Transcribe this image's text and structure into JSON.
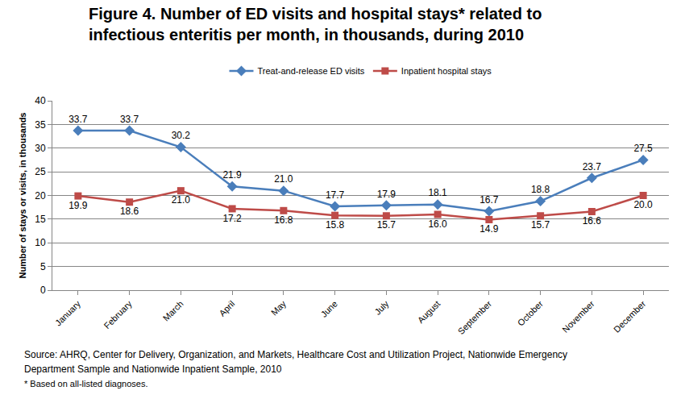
{
  "chart_data": {
    "type": "line",
    "title": "Figure 4. Number of ED visits and hospital stays* related to infectious enteritis per month, in thousands, during 2010",
    "y_label": "Number of stays or visits, in thousands",
    "categories": [
      "January",
      "February",
      "March",
      "April",
      "May",
      "June",
      "July",
      "August",
      "September",
      "October",
      "November",
      "December"
    ],
    "series": [
      {
        "name": "Treat-and-release ED visits",
        "color": "#4a7ebb",
        "marker": "diamond",
        "values": [
          33.7,
          33.7,
          30.2,
          21.9,
          21.0,
          17.7,
          17.9,
          18.1,
          16.7,
          18.8,
          23.7,
          27.5
        ],
        "value_labels": [
          "33.7",
          "33.7",
          "30.2",
          "21.9",
          "21.0",
          "17.7",
          "17.9",
          "18.1",
          "16.7",
          "18.8",
          "23.7",
          "27.5"
        ]
      },
      {
        "name": "Inpatient hospital stays",
        "color": "#be4b48",
        "marker": "square",
        "values": [
          19.9,
          18.6,
          21.0,
          17.2,
          16.8,
          15.8,
          15.7,
          16.0,
          14.9,
          15.7,
          16.6,
          20.0
        ],
        "value_labels": [
          "19.9",
          "18.6",
          "21.0",
          "17.2",
          "16.8",
          "15.8",
          "15.7",
          "16.0",
          "14.9",
          "15.7",
          "16.6",
          "20.0"
        ]
      }
    ],
    "ylim": [
      0,
      40
    ],
    "yticks": [
      0,
      5,
      10,
      15,
      20,
      25,
      30,
      35,
      40
    ],
    "grid": true,
    "legend": "top",
    "data_labels": true,
    "annotations": [
      "Source: AHRQ, Center for Delivery, Organization, and Markets, Healthcare Cost and Utilization Project, Nationwide Emergency",
      "Department Sample and Nationwide Inpatient Sample, 2010",
      "* Based on all-listed diagnoses."
    ]
  }
}
